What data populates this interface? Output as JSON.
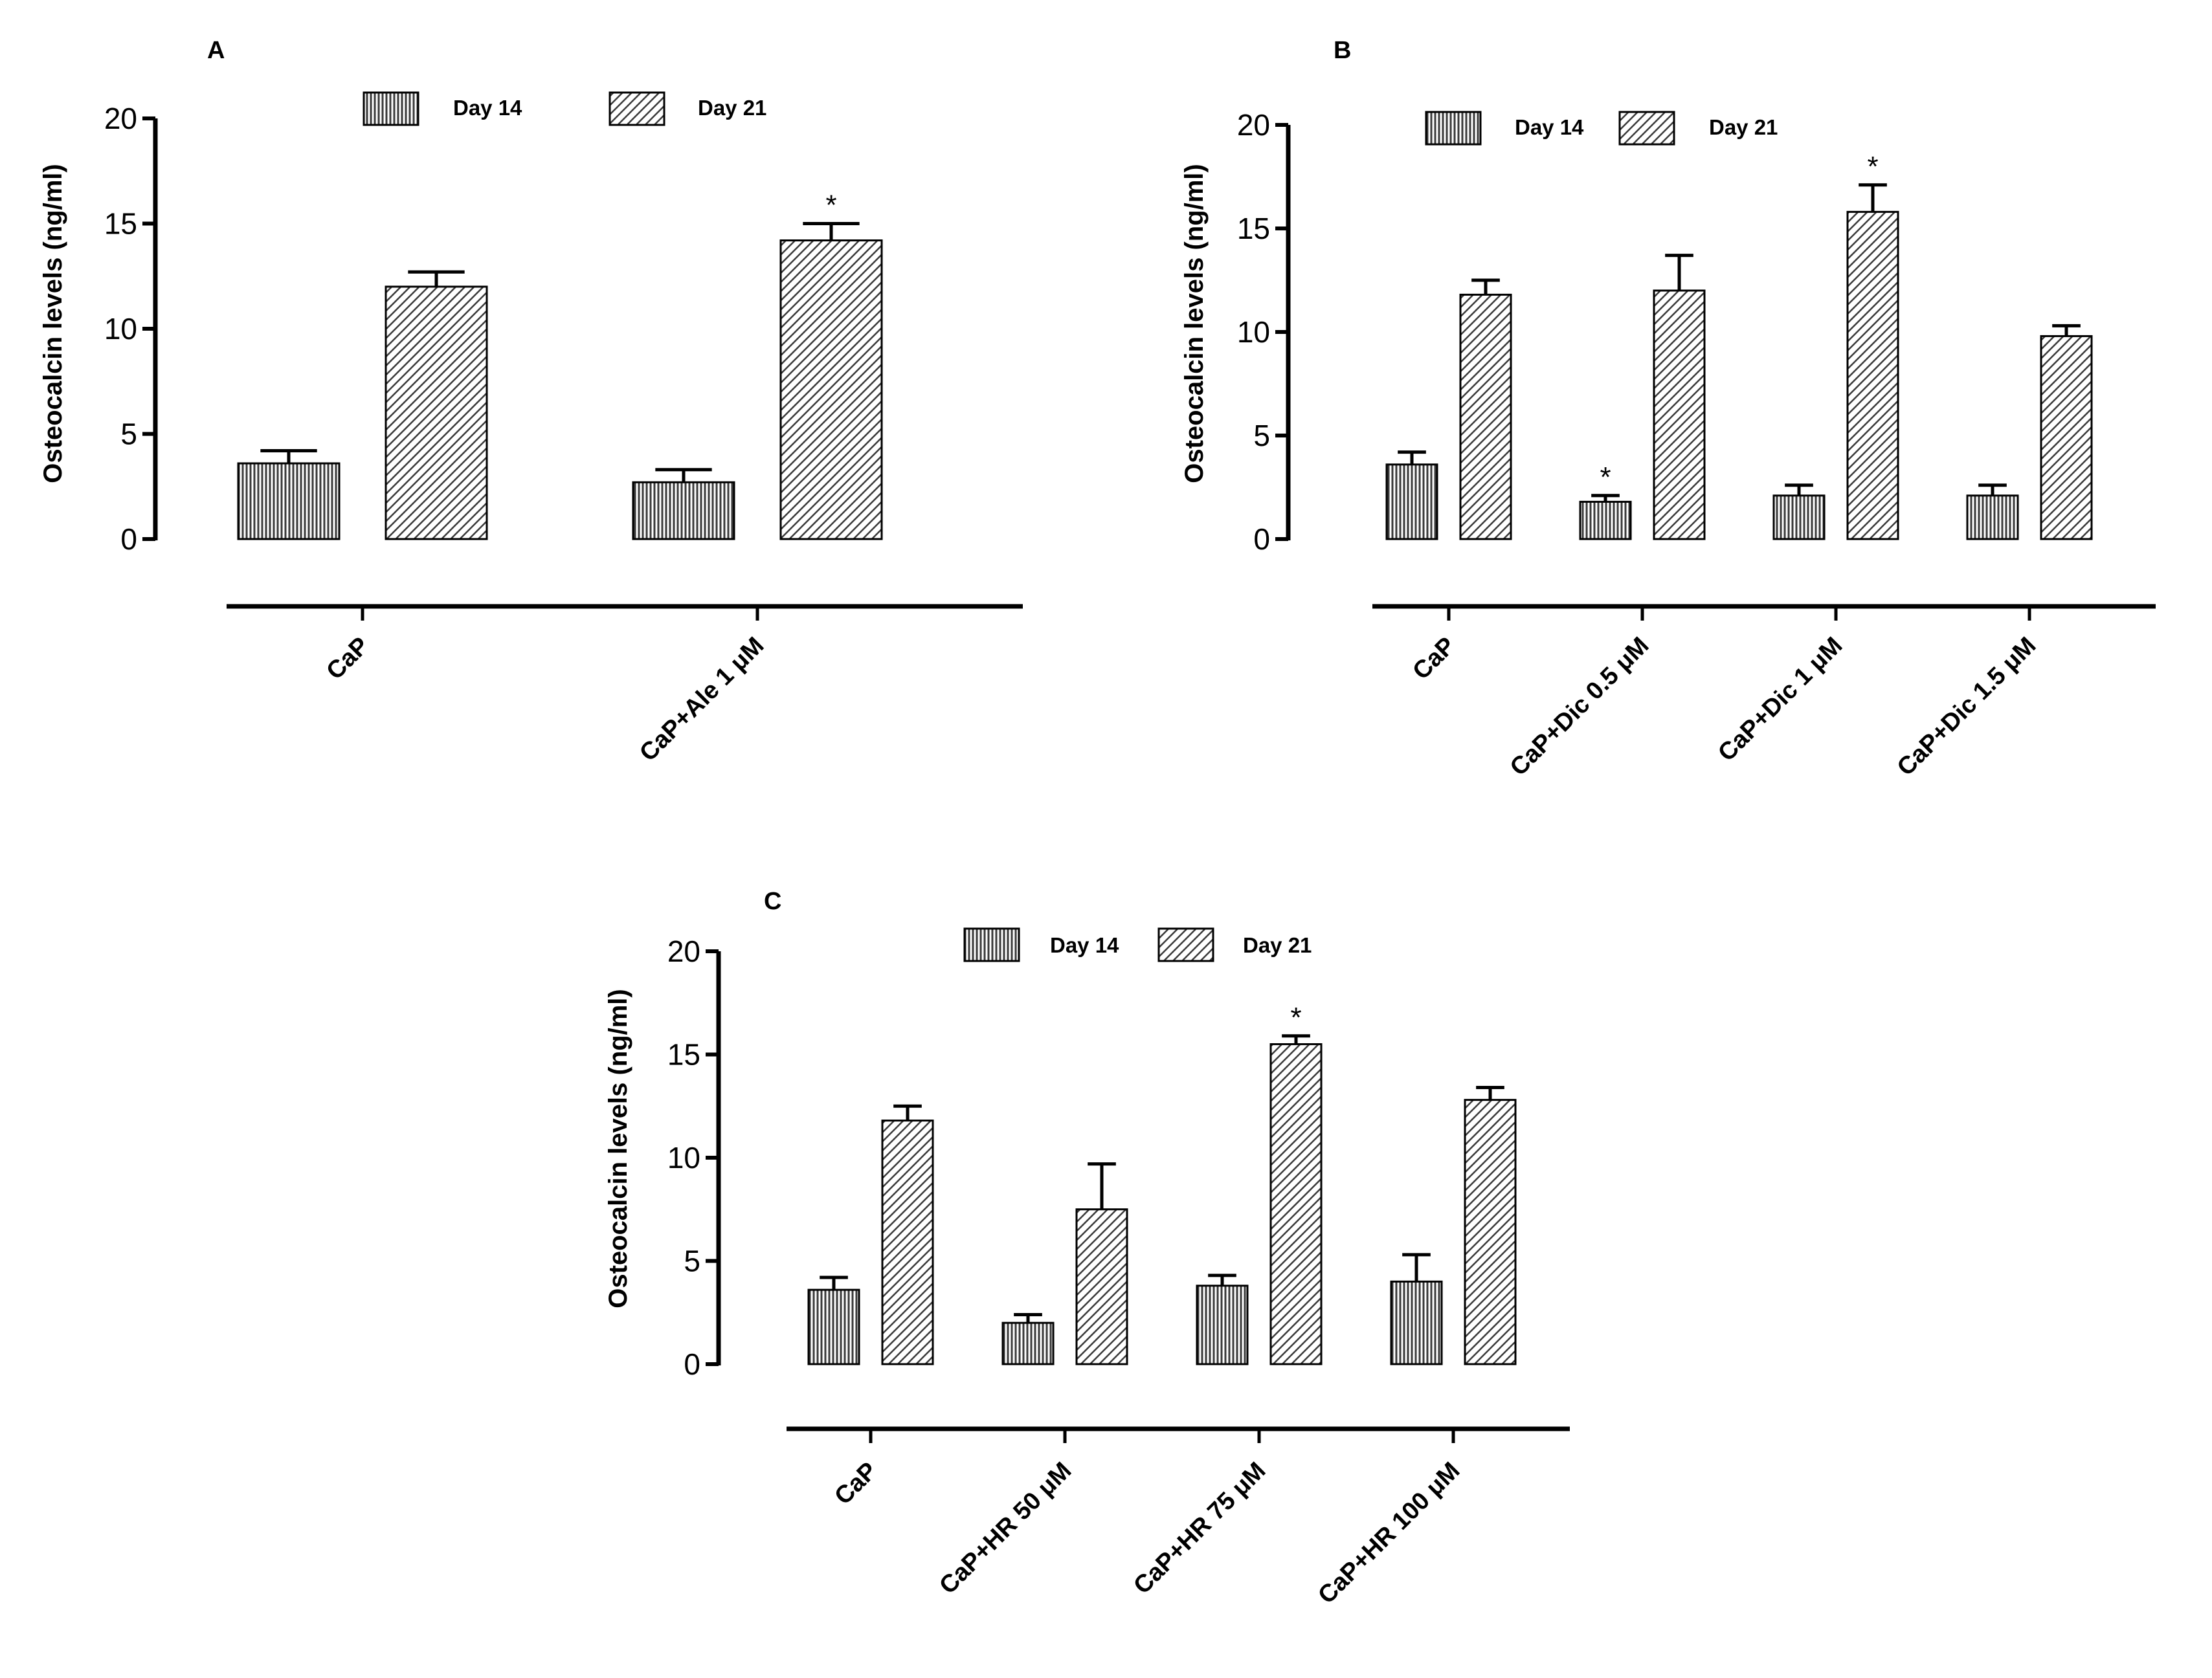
{
  "chart_data": [
    {
      "type": "bar",
      "panel": "A",
      "ylabel": "Osteocalcin levels (ng/ml)",
      "ylim": [
        0,
        20
      ],
      "yticks": [
        0,
        5,
        10,
        15,
        20
      ],
      "categories": [
        "CaP",
        "CaP+Ale 1 μM"
      ],
      "series": [
        {
          "name": "Day 14",
          "pattern": "vertical",
          "values": [
            3.6,
            2.7
          ],
          "errors": [
            0.6,
            0.6
          ],
          "significant": [
            false,
            false
          ]
        },
        {
          "name": "Day 21",
          "pattern": "diagonal",
          "values": [
            12.0,
            14.2
          ],
          "errors": [
            0.7,
            0.8
          ],
          "significant": [
            false,
            true
          ]
        }
      ],
      "significance_mark": "*"
    },
    {
      "type": "bar",
      "panel": "B",
      "ylabel": "Osteocalcin levels (ng/ml)",
      "ylim": [
        0,
        20
      ],
      "yticks": [
        0,
        5,
        10,
        15,
        20
      ],
      "categories": [
        "CaP",
        "CaP+Dic 0.5 μM",
        "CaP+Dic 1 μM",
        "CaP+Dic 1.5 μM"
      ],
      "series": [
        {
          "name": "Day 14",
          "pattern": "vertical",
          "values": [
            3.6,
            1.8,
            2.1,
            2.1
          ],
          "errors": [
            0.6,
            0.3,
            0.5,
            0.5
          ],
          "significant": [
            false,
            true,
            false,
            false
          ]
        },
        {
          "name": "Day 21",
          "pattern": "diagonal",
          "values": [
            11.8,
            12.0,
            15.8,
            9.8
          ],
          "errors": [
            0.7,
            1.7,
            1.3,
            0.5
          ],
          "significant": [
            false,
            false,
            true,
            false
          ]
        }
      ],
      "significance_mark": "*"
    },
    {
      "type": "bar",
      "panel": "C",
      "ylabel": "Osteocalcin levels (ng/ml)",
      "ylim": [
        0,
        20
      ],
      "yticks": [
        0,
        5,
        10,
        15,
        20
      ],
      "categories": [
        "CaP",
        "CaP+HR 50 μM",
        "CaP+HR 75 μM",
        "CaP+HR 100 μM"
      ],
      "series": [
        {
          "name": "Day 14",
          "pattern": "vertical",
          "values": [
            3.6,
            2.0,
            3.8,
            4.0
          ],
          "errors": [
            0.6,
            0.4,
            0.5,
            1.3
          ],
          "significant": [
            false,
            false,
            false,
            false
          ]
        },
        {
          "name": "Day 21",
          "pattern": "diagonal",
          "values": [
            11.8,
            7.5,
            15.5,
            12.8
          ],
          "errors": [
            0.7,
            2.2,
            0.4,
            0.6
          ],
          "significant": [
            false,
            false,
            true,
            false
          ]
        }
      ],
      "significance_mark": "*"
    }
  ]
}
